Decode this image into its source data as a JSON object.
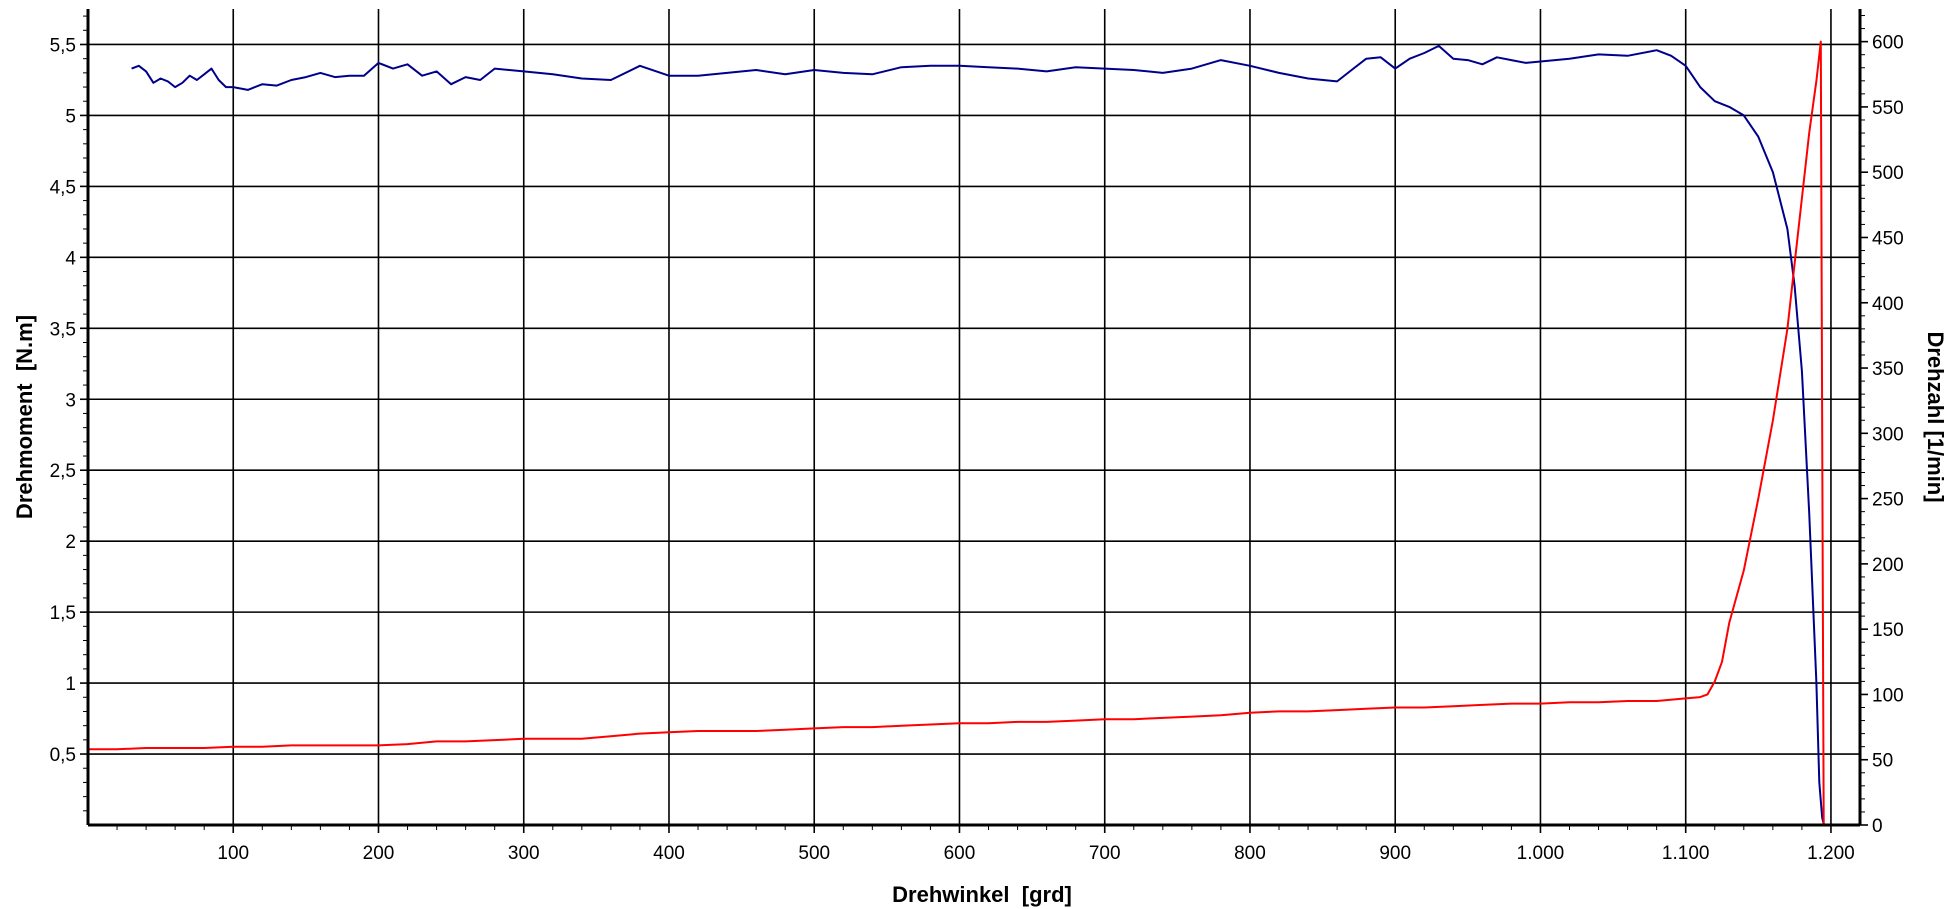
{
  "chart_data": {
    "type": "line",
    "title": "",
    "xlabel": "Drehwinkel  [grd]",
    "ylabel": "Drehmoment  [N.m]",
    "y2label": "Drehzahl [1/min]",
    "xlim": [
      0,
      1220
    ],
    "ylim": [
      0,
      5.75
    ],
    "y2lim": [
      0,
      625
    ],
    "grid": true,
    "legend": "none",
    "x_ticks": [
      {
        "value": 100,
        "label": "100"
      },
      {
        "value": 200,
        "label": "200"
      },
      {
        "value": 300,
        "label": "300"
      },
      {
        "value": 400,
        "label": "400"
      },
      {
        "value": 500,
        "label": "500"
      },
      {
        "value": 600,
        "label": "600"
      },
      {
        "value": 700,
        "label": "700"
      },
      {
        "value": 800,
        "label": "800"
      },
      {
        "value": 900,
        "label": "900"
      },
      {
        "value": 1000,
        "label": "1.000"
      },
      {
        "value": 1100,
        "label": "1.100"
      },
      {
        "value": 1200,
        "label": "1.200"
      }
    ],
    "y_ticks": [
      {
        "value": 0.5,
        "label": "0,5"
      },
      {
        "value": 1,
        "label": "1"
      },
      {
        "value": 1.5,
        "label": "1,5"
      },
      {
        "value": 2,
        "label": "2"
      },
      {
        "value": 2.5,
        "label": "2,5"
      },
      {
        "value": 3,
        "label": "3"
      },
      {
        "value": 3.5,
        "label": "3,5"
      },
      {
        "value": 4,
        "label": "4"
      },
      {
        "value": 4.5,
        "label": "4,5"
      },
      {
        "value": 5,
        "label": "5"
      },
      {
        "value": 5.5,
        "label": "5,5"
      }
    ],
    "y2_ticks": [
      {
        "value": 0,
        "label": "0"
      },
      {
        "value": 50,
        "label": "50"
      },
      {
        "value": 100,
        "label": "100"
      },
      {
        "value": 150,
        "label": "150"
      },
      {
        "value": 200,
        "label": "200"
      },
      {
        "value": 250,
        "label": "250"
      },
      {
        "value": 300,
        "label": "300"
      },
      {
        "value": 350,
        "label": "350"
      },
      {
        "value": 400,
        "label": "400"
      },
      {
        "value": 450,
        "label": "450"
      },
      {
        "value": 500,
        "label": "500"
      },
      {
        "value": 550,
        "label": "550"
      },
      {
        "value": 600,
        "label": "600"
      }
    ],
    "series": [
      {
        "axis": "left",
        "color": "#00008b",
        "x": [
          30,
          35,
          40,
          45,
          50,
          55,
          60,
          65,
          70,
          75,
          80,
          85,
          90,
          95,
          100,
          110,
          120,
          130,
          140,
          150,
          160,
          170,
          180,
          190,
          200,
          210,
          220,
          230,
          240,
          250,
          260,
          270,
          280,
          290,
          300,
          320,
          340,
          360,
          380,
          400,
          420,
          440,
          460,
          480,
          500,
          520,
          540,
          560,
          580,
          600,
          620,
          640,
          660,
          680,
          700,
          720,
          740,
          760,
          780,
          800,
          820,
          840,
          860,
          870,
          880,
          890,
          900,
          910,
          920,
          930,
          940,
          950,
          960,
          970,
          980,
          990,
          1000,
          1020,
          1040,
          1060,
          1080,
          1090,
          1100,
          1110,
          1120,
          1130,
          1140,
          1150,
          1160,
          1170,
          1175,
          1180,
          1185,
          1190,
          1192,
          1194,
          1195
        ],
        "y": [
          5.33,
          5.35,
          5.31,
          5.23,
          5.26,
          5.24,
          5.2,
          5.23,
          5.28,
          5.25,
          5.29,
          5.33,
          5.25,
          5.2,
          5.2,
          5.18,
          5.22,
          5.21,
          5.25,
          5.27,
          5.3,
          5.27,
          5.28,
          5.28,
          5.37,
          5.33,
          5.36,
          5.28,
          5.31,
          5.22,
          5.27,
          5.25,
          5.33,
          5.32,
          5.31,
          5.29,
          5.26,
          5.25,
          5.35,
          5.28,
          5.28,
          5.3,
          5.32,
          5.29,
          5.32,
          5.3,
          5.29,
          5.34,
          5.35,
          5.35,
          5.34,
          5.33,
          5.31,
          5.34,
          5.33,
          5.32,
          5.3,
          5.33,
          5.39,
          5.35,
          5.3,
          5.26,
          5.24,
          5.32,
          5.4,
          5.41,
          5.33,
          5.4,
          5.44,
          5.49,
          5.4,
          5.39,
          5.36,
          5.41,
          5.39,
          5.37,
          5.38,
          5.4,
          5.43,
          5.42,
          5.46,
          5.42,
          5.35,
          5.2,
          5.1,
          5.06,
          5.0,
          4.85,
          4.6,
          4.2,
          3.8,
          3.2,
          2.2,
          1.0,
          0.3,
          0.05,
          0.01
        ]
      },
      {
        "axis": "right",
        "color": "#ff0000",
        "x": [
          0,
          20,
          40,
          60,
          80,
          100,
          120,
          140,
          160,
          180,
          200,
          220,
          240,
          260,
          280,
          300,
          320,
          340,
          360,
          380,
          400,
          420,
          440,
          460,
          480,
          500,
          520,
          540,
          560,
          580,
          600,
          620,
          640,
          660,
          680,
          700,
          720,
          740,
          760,
          780,
          800,
          820,
          840,
          860,
          880,
          900,
          920,
          940,
          960,
          980,
          1000,
          1020,
          1040,
          1060,
          1080,
          1100,
          1110,
          1115,
          1120,
          1125,
          1130,
          1140,
          1150,
          1160,
          1170,
          1175,
          1180,
          1185,
          1190,
          1193,
          1194,
          1195
        ],
        "y": [
          58,
          58,
          59,
          59,
          59,
          60,
          60,
          61,
          61,
          61,
          61,
          62,
          64,
          64,
          65,
          66,
          66,
          66,
          68,
          70,
          71,
          72,
          72,
          72,
          73,
          74,
          75,
          75,
          76,
          77,
          78,
          78,
          79,
          79,
          80,
          81,
          81,
          82,
          83,
          84,
          86,
          87,
          87,
          88,
          89,
          90,
          90,
          91,
          92,
          93,
          93,
          94,
          94,
          95,
          95,
          97,
          98,
          100,
          110,
          125,
          155,
          195,
          250,
          310,
          380,
          430,
          480,
          530,
          570,
          600,
          300,
          0
        ]
      }
    ]
  }
}
